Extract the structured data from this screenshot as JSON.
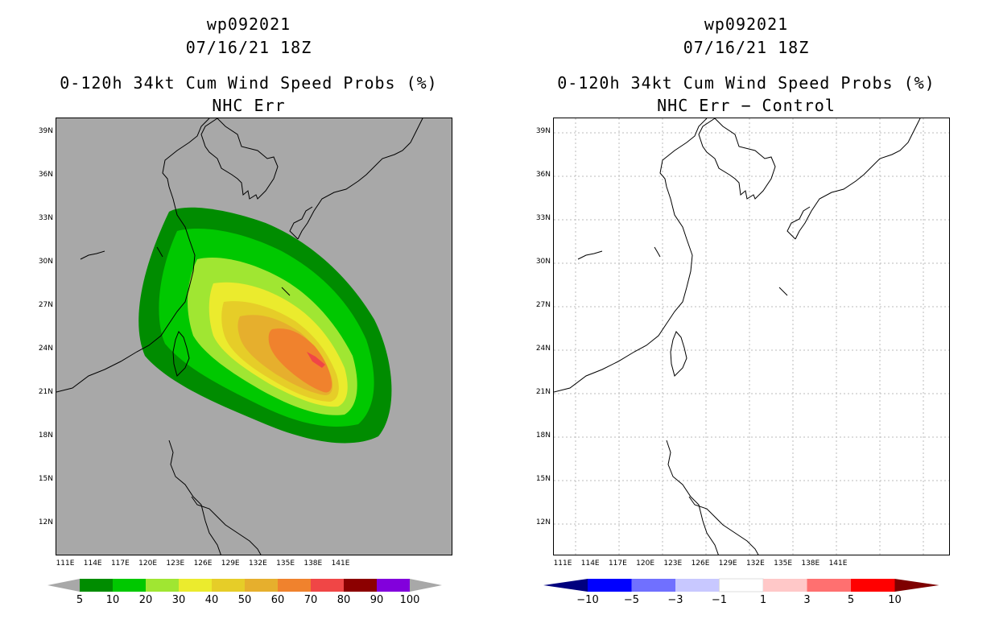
{
  "panels": [
    {
      "storm_id": "wp092021",
      "datetime": "07/16/21 18Z",
      "product": "0-120h 34kt Cum Wind Speed Probs (%)",
      "subtitle": "NHC Err",
      "colorbar": {
        "labels": [
          "5",
          "10",
          "20",
          "30",
          "40",
          "50",
          "60",
          "70",
          "80",
          "90",
          "100"
        ],
        "colors": [
          "#008c00",
          "#00c800",
          "#a0e632",
          "#ebeb2d",
          "#e6cd28",
          "#e6af2d",
          "#f0822d",
          "#f04646",
          "#8c0000",
          "#8200dc"
        ]
      }
    },
    {
      "storm_id": "wp092021",
      "datetime": "07/16/21 18Z",
      "product": "0-120h 34kt Cum Wind Speed Probs (%)",
      "subtitle": "NHC Err − Control",
      "colorbar": {
        "labels": [
          "−10",
          "−5",
          "−3",
          "−1",
          "1",
          "3",
          "5",
          "10"
        ],
        "colors": [
          "#00007e",
          "#0000ff",
          "#7070ff",
          "#c8c8ff",
          "#ffffff",
          "#ffc8c8",
          "#ff7070",
          "#ff0000",
          "#7e0000"
        ]
      }
    }
  ],
  "lat_labels": [
    "39N",
    "36N",
    "33N",
    "30N",
    "27N",
    "24N",
    "21N",
    "18N",
    "15N",
    "12N"
  ],
  "lon_labels": [
    "111E",
    "114E",
    "117E",
    "120E",
    "123E",
    "126E",
    "129E",
    "132E",
    "135E",
    "138E",
    "141E"
  ],
  "map_features": {
    "coastlines": "coastline-outlines",
    "probability_shading": "wind-probability-contours"
  }
}
